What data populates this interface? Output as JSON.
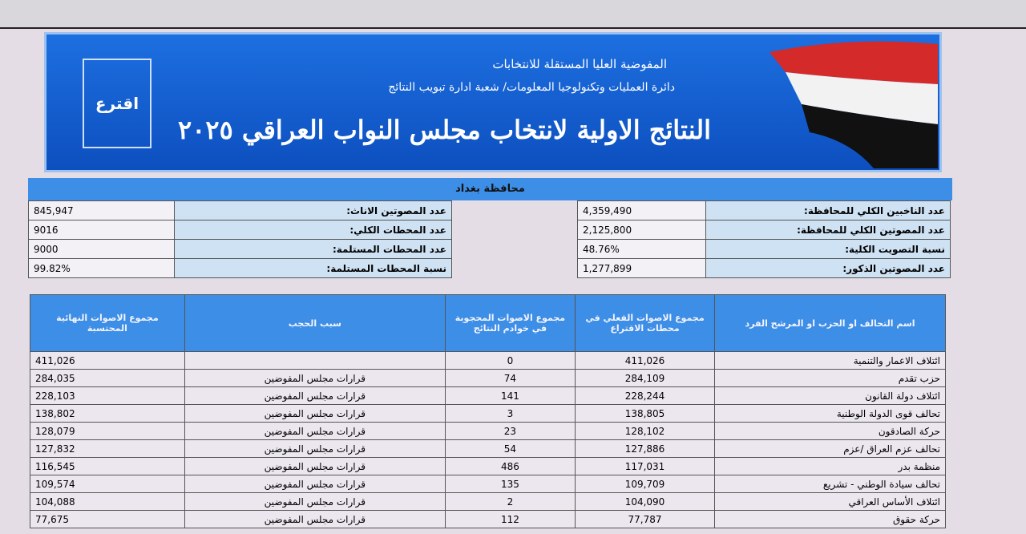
{
  "header": {
    "commission": "المفوضية العليا المستقلة للانتخابات",
    "department": "دائرة العمليات وتكنولوجيا المعلومات/ شعبة ادارة تبويب النتائج",
    "title": "النتائج الاولية لانتخاب مجلس النواب العراقي ٢٠٢٥",
    "logo_text": "اقترع"
  },
  "summary": {
    "province": "محافظة بغداد",
    "right": [
      [
        "عدد الناخبين الكلي للمحافظة:",
        "4,359,490"
      ],
      [
        "عدد المصوتين الكلي للمحافظة:",
        "2,125,800"
      ],
      [
        "نسبة التصويت الكلية:",
        "48.76%"
      ],
      [
        "عدد المصوتين الذكور:",
        "1,277,899"
      ]
    ],
    "left": [
      [
        "عدد المصوتين الاناث:",
        "845,947"
      ],
      [
        "عدد المحطات الكلي:",
        "9016"
      ],
      [
        "عدد المحطات المستلمة:",
        "9000"
      ],
      [
        "نسبة المحطات المستلمة:",
        "99.82%"
      ]
    ]
  },
  "table": {
    "columns": [
      "اسم التحالف او الحزب او المرشح الفرد",
      "مجموع الاصوات الفعلي في محطات الاقتراع",
      "مجموع الاصوات المحجوبة في خوادم النتائج",
      "سبب الحجب",
      "مجموع الاصوات النهائية المحتسبة"
    ],
    "rows": [
      [
        "ائتلاف الاعمار والتنمية",
        "411,026",
        "0",
        null,
        "411,026"
      ],
      [
        "حزب تقدم",
        "284,109",
        "74",
        "قرارات مجلس المفوضين",
        "284,035"
      ],
      [
        "ائتلاف دولة القانون",
        "228,244",
        "141",
        "قرارات مجلس المفوضين",
        "228,103"
      ],
      [
        "تحالف قوى الدولة الوطنية",
        "138,805",
        "3",
        "قرارات مجلس المفوضين",
        "138,802"
      ],
      [
        "حركة الصادقون",
        "128,102",
        "23",
        "قرارات مجلس المفوضين",
        "128,079"
      ],
      [
        "تحالف عزم العراق /عزم",
        "127,886",
        "54",
        "قرارات مجلس المفوضين",
        "127,832"
      ],
      [
        "منظمة بدر",
        "117,031",
        "486",
        "قرارات مجلس المفوضين",
        "116,545"
      ],
      [
        "تحالف سيادة الوطني - تشريع",
        "109,709",
        "135",
        "قرارات مجلس المفوضين",
        "109,574"
      ],
      [
        "ائتلاف الأساس العراقي",
        "104,090",
        "2",
        "قرارات مجلس المفوضين",
        "104,088"
      ],
      [
        "حركة حقوق",
        "77,787",
        "112",
        "قرارات مجلس المفوضين",
        "77,675"
      ]
    ]
  }
}
